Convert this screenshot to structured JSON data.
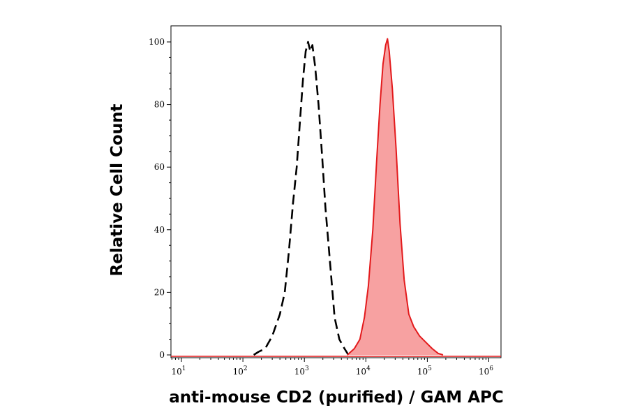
{
  "chart_data": {
    "type": "area",
    "xlabel": "anti-mouse CD2 (purified) / GAM APC",
    "ylabel": "Relative Cell Count",
    "x_scale": "log",
    "xlim": [
      1,
      1000000
    ],
    "ylim": [
      0,
      100
    ],
    "x_ticks": [
      {
        "base": "10",
        "exp": "1",
        "value": 10
      },
      {
        "base": "10",
        "exp": "2",
        "value": 100
      },
      {
        "base": "10",
        "exp": "3",
        "value": 1000
      },
      {
        "base": "10",
        "exp": "4",
        "value": 10000
      },
      {
        "base": "10",
        "exp": "5",
        "value": 100000
      },
      {
        "base": "10",
        "exp": "6",
        "value": 1000000
      }
    ],
    "y_ticks": [
      {
        "label": "0",
        "value": 0
      },
      {
        "label": "20",
        "value": 20
      },
      {
        "label": "40",
        "value": 40
      },
      {
        "label": "60",
        "value": 60
      },
      {
        "label": "80",
        "value": 80
      },
      {
        "label": "100",
        "value": 100
      }
    ],
    "grid": false,
    "series": [
      {
        "style": "dashed-outline",
        "color": "#000000",
        "points": [
          [
            150,
            0
          ],
          [
            180,
            1
          ],
          [
            230,
            2
          ],
          [
            300,
            6
          ],
          [
            400,
            13
          ],
          [
            480,
            20
          ],
          [
            560,
            33
          ],
          [
            650,
            48
          ],
          [
            750,
            60
          ],
          [
            850,
            75
          ],
          [
            950,
            88
          ],
          [
            1050,
            97
          ],
          [
            1150,
            100
          ],
          [
            1250,
            97
          ],
          [
            1350,
            99
          ],
          [
            1500,
            92
          ],
          [
            1700,
            80
          ],
          [
            1950,
            63
          ],
          [
            2200,
            47
          ],
          [
            2600,
            30
          ],
          [
            3100,
            12
          ],
          [
            3700,
            5
          ],
          [
            4500,
            2
          ],
          [
            5200,
            0
          ]
        ]
      },
      {
        "style": "filled",
        "color": "#e31a1c",
        "fill": "#f7a1a1",
        "points": [
          [
            5000,
            0
          ],
          [
            6500,
            2
          ],
          [
            8000,
            5
          ],
          [
            9500,
            12
          ],
          [
            11000,
            22
          ],
          [
            13000,
            40
          ],
          [
            15000,
            62
          ],
          [
            17000,
            80
          ],
          [
            19000,
            93
          ],
          [
            21000,
            99
          ],
          [
            22500,
            101
          ],
          [
            24000,
            97
          ],
          [
            27000,
            85
          ],
          [
            31000,
            66
          ],
          [
            36000,
            42
          ],
          [
            42000,
            24
          ],
          [
            50000,
            13
          ],
          [
            60000,
            9
          ],
          [
            75000,
            6
          ],
          [
            95000,
            4
          ],
          [
            120000,
            2
          ],
          [
            150000,
            0.5
          ],
          [
            180000,
            0
          ]
        ]
      }
    ]
  }
}
